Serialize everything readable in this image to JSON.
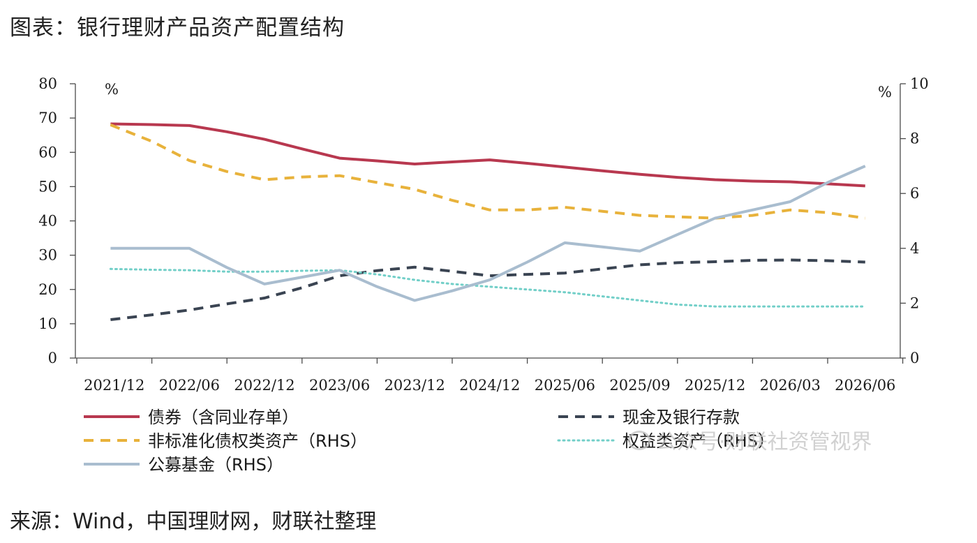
{
  "figure": {
    "title": "图表：银行理财产品资产配置结构",
    "source": "来源：Wind，中国理财网，财联社整理",
    "watermark": "公众号·财联社资管视界"
  },
  "chart_data": {
    "type": "line",
    "title": "图表：银行理财产品资产配置结构",
    "xlabel": "",
    "ylabel": "%",
    "y2label": "%",
    "ylim": [
      0,
      80
    ],
    "y2lim": [
      0,
      10
    ],
    "yticks": [
      0,
      10,
      20,
      30,
      40,
      50,
      60,
      70,
      80
    ],
    "y2ticks": [
      0,
      2,
      4,
      6,
      8,
      10
    ],
    "categories": [
      "2021/12",
      "2022/06",
      "2022/12",
      "2023/06",
      "2023/12",
      "2024/12",
      "2025/06",
      "2025/09",
      "2025/12",
      "2026/03",
      "2026/06"
    ],
    "legend_position": "bottom",
    "grid": false,
    "series": [
      {
        "name": "债券（含同业存单）",
        "axis": "left",
        "style": "solid",
        "color": "#b8384f",
        "x": [
          0.45,
          1.0,
          1.5,
          2.0,
          2.5,
          3.0,
          3.5,
          4.0,
          4.5,
          5.0,
          5.5,
          6.0,
          6.5,
          7.0,
          7.5,
          8.0,
          8.5,
          9.0,
          9.5,
          10.0,
          10.5
        ],
        "values": [
          68.3,
          68.1,
          67.8,
          66.0,
          63.8,
          61.0,
          58.3,
          57.5,
          56.6,
          57.2,
          57.8,
          56.8,
          55.7,
          54.6,
          53.6,
          52.7,
          52.0,
          51.6,
          51.4,
          50.8,
          50.2
        ]
      },
      {
        "name": "现金及银行存款",
        "axis": "left",
        "style": "dashed",
        "color": "#3a4452",
        "x": [
          0.45,
          1.0,
          1.5,
          2.0,
          2.5,
          3.0,
          3.5,
          4.0,
          4.5,
          5.0,
          5.5,
          6.0,
          6.5,
          7.0,
          7.5,
          8.0,
          8.5,
          9.0,
          9.5,
          10.0,
          10.5
        ],
        "values": [
          11.2,
          12.6,
          14.0,
          15.8,
          17.5,
          20.5,
          24.0,
          25.5,
          26.5,
          25.3,
          24.0,
          24.4,
          24.8,
          26.0,
          27.2,
          27.8,
          28.1,
          28.5,
          28.6,
          28.4,
          28.0
        ]
      },
      {
        "name": "非标准化债权类资产（RHS）",
        "axis": "right",
        "style": "dashed",
        "color": "#e8b23b",
        "x": [
          0.45,
          1.0,
          1.5,
          2.0,
          2.5,
          3.0,
          3.5,
          4.0,
          4.5,
          5.0,
          5.5,
          6.0,
          6.5,
          7.0,
          7.5,
          8.0,
          8.5,
          9.0,
          9.5,
          10.0,
          10.5
        ],
        "values": [
          8.5,
          7.9,
          7.2,
          6.8,
          6.5,
          6.6,
          6.65,
          6.4,
          6.15,
          5.75,
          5.4,
          5.4,
          5.5,
          5.35,
          5.2,
          5.15,
          5.1,
          5.2,
          5.4,
          5.3,
          5.1
        ]
      },
      {
        "name": "权益类资产（RHS）",
        "axis": "right",
        "style": "dotted",
        "color": "#72cfc8",
        "x": [
          0.45,
          1.0,
          1.5,
          2.0,
          2.5,
          3.0,
          3.5,
          4.0,
          4.5,
          5.0,
          5.5,
          6.0,
          6.5,
          7.0,
          7.5,
          8.0,
          8.5,
          9.0,
          9.5,
          10.0,
          10.5
        ],
        "values": [
          3.25,
          3.22,
          3.2,
          3.15,
          3.15,
          3.18,
          3.2,
          3.05,
          2.85,
          2.7,
          2.6,
          2.5,
          2.4,
          2.25,
          2.1,
          1.95,
          1.88,
          1.88,
          1.88,
          1.88,
          1.88
        ]
      },
      {
        "name": "公募基金（RHS）",
        "axis": "right",
        "style": "solid",
        "color": "#a9bdcf",
        "x": [
          0.45,
          1.0,
          1.5,
          2.0,
          2.5,
          3.0,
          3.5,
          4.0,
          4.5,
          5.0,
          5.5,
          6.0,
          6.5,
          7.0,
          7.5,
          8.0,
          8.5,
          9.0,
          9.5,
          10.0,
          10.5
        ],
        "values": [
          4.0,
          4.0,
          4.0,
          3.3,
          2.7,
          2.95,
          3.2,
          2.6,
          2.1,
          2.45,
          2.85,
          3.5,
          4.2,
          4.05,
          3.9,
          4.5,
          5.1,
          5.4,
          5.7,
          6.4,
          7.0
        ]
      }
    ]
  }
}
